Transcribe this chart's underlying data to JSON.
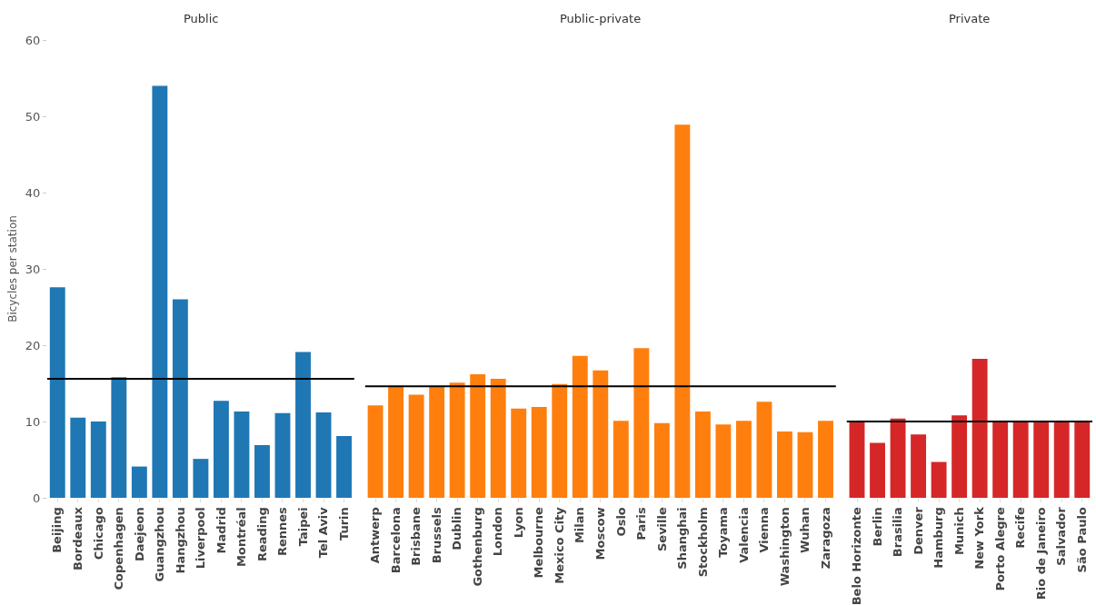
{
  "chart_data": [
    {
      "type": "bar",
      "title": "Public",
      "ylabel": "Bicycles per station",
      "color": "#1f77b4",
      "categories": [
        "Beijing",
        "Bordeaux",
        "Chicago",
        "Copenhagen",
        "Daejeon",
        "Guangzhou",
        "Hangzhou",
        "Liverpool",
        "Madrid",
        "Montréal",
        "Reading",
        "Rennes",
        "Taipei",
        "Tel Aviv",
        "Turin"
      ],
      "values": [
        27.6,
        10.5,
        10.0,
        15.8,
        4.1,
        54.0,
        26.0,
        5.1,
        12.7,
        11.3,
        6.9,
        11.1,
        19.1,
        11.2,
        8.1
      ],
      "ylim": [
        0,
        60
      ],
      "yticks": [
        0,
        10,
        20,
        30,
        40,
        50,
        60
      ],
      "grid": false,
      "ref_lines": [
        {
          "axis": "y",
          "value": 15.6,
          "color": "#000000"
        }
      ]
    },
    {
      "type": "bar",
      "title": "Public-private",
      "color": "#ff7f0e",
      "categories": [
        "Antwerp",
        "Barcelona",
        "Brisbane",
        "Brussels",
        "Dublin",
        "Gothenburg",
        "London",
        "Lyon",
        "Melbourne",
        "Mexico City",
        "Milan",
        "Moscow",
        "Oslo",
        "Paris",
        "Seville",
        "Shanghai",
        "Stockholm",
        "Toyama",
        "Valencia",
        "Vienna",
        "Washington",
        "Wuhan",
        "Zaragoza"
      ],
      "values": [
        12.1,
        14.6,
        13.5,
        14.6,
        15.1,
        16.2,
        15.6,
        11.7,
        11.9,
        14.9,
        18.6,
        16.7,
        10.1,
        19.6,
        9.8,
        48.9,
        11.3,
        9.6,
        10.1,
        12.6,
        8.7,
        8.6,
        10.1
      ],
      "ylim": [
        0,
        60
      ],
      "yticks": [
        0,
        10,
        20,
        30,
        40,
        50,
        60
      ],
      "grid": false,
      "tick_labels": "x",
      "ref_lines": [
        {
          "axis": "y",
          "value": 14.6,
          "color": "#000000"
        }
      ]
    },
    {
      "type": "bar",
      "title": "Private",
      "color": "#d62728",
      "categories": [
        "Belo Horizonte",
        "Berlin",
        "Brasilia",
        "Denver",
        "Hamburg",
        "Munich",
        "New York",
        "Porto Alegre",
        "Recife",
        "Rio de Janeiro",
        "Salvador",
        "São Paulo"
      ],
      "values": [
        10.0,
        7.2,
        10.4,
        8.3,
        4.7,
        10.8,
        18.2,
        10.0,
        10.0,
        10.0,
        10.0,
        10.0
      ],
      "ylim": [
        0,
        60
      ],
      "yticks": [
        0,
        10,
        20,
        30,
        40,
        50,
        60
      ],
      "grid": false,
      "tick_labels": "x",
      "ref_lines": [
        {
          "axis": "y",
          "value": 10.0,
          "color": "#000000"
        }
      ]
    }
  ]
}
